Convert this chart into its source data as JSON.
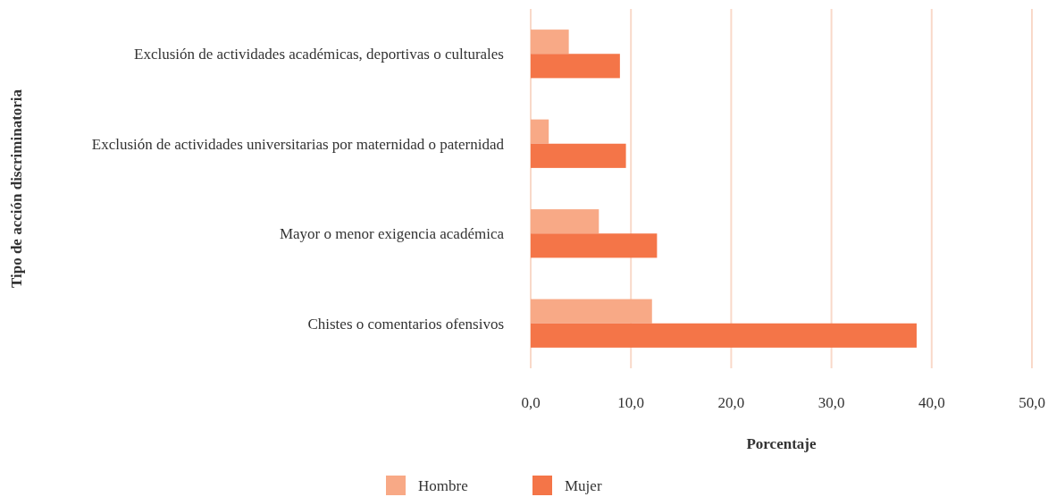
{
  "chart_data": {
    "type": "bar",
    "orientation": "horizontal",
    "xlabel": "Porcentaje",
    "ylabel": "Tipo de acción discriminatoria",
    "categories": [
      "Exclusión de actividades académicas, deportivas o culturales",
      "Exclusión de actividades universitarias por maternidad o paternidad",
      "Mayor o menor exigencia académica",
      "Chistes o comentarios ofensivos"
    ],
    "series": [
      {
        "name": "Hombre",
        "color": "#f8a986",
        "values": [
          3.8,
          1.8,
          6.8,
          12.1
        ]
      },
      {
        "name": "Mujer",
        "color": "#f47548",
        "values": [
          8.9,
          9.5,
          12.6,
          38.5
        ]
      }
    ],
    "xlim": [
      0,
      50
    ],
    "xticks": [
      {
        "value": 0,
        "label": "0,0"
      },
      {
        "value": 10,
        "label": "10,0"
      },
      {
        "value": 20,
        "label": "20,0"
      },
      {
        "value": 30,
        "label": "30,0"
      },
      {
        "value": 40,
        "label": "40,0"
      },
      {
        "value": 50,
        "label": "50,0"
      }
    ],
    "grid": "x",
    "legend": "bottom"
  }
}
